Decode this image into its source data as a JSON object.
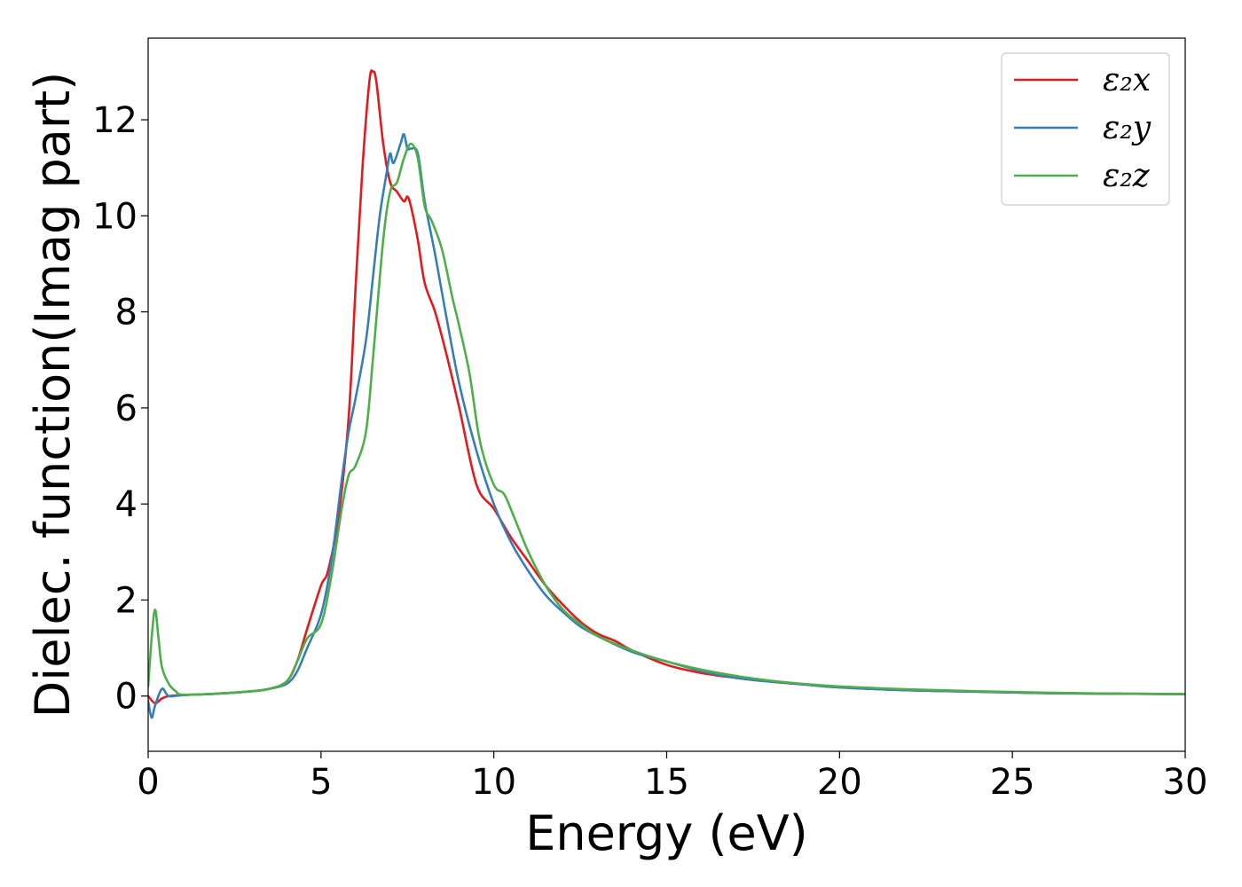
{
  "chart_data": {
    "type": "line",
    "title": "",
    "xlabel": "Energy (eV)",
    "ylabel": "Dielec. function(Imag part)",
    "xlim": [
      0,
      30
    ],
    "ylim": [
      -1.15,
      13.7
    ],
    "xticks": [
      0,
      5,
      10,
      15,
      20,
      25,
      30
    ],
    "yticks": [
      0,
      2,
      4,
      6,
      8,
      10,
      12
    ],
    "grid": false,
    "legend_position": "top-right",
    "series": [
      {
        "name": "ε₂x",
        "color": "#e41a1c",
        "x": [
          0.0,
          0.2,
          0.4,
          0.6,
          1.0,
          2.0,
          3.0,
          3.5,
          4.0,
          4.3,
          4.6,
          5.0,
          5.2,
          5.5,
          5.8,
          6.0,
          6.2,
          6.4,
          6.5,
          6.6,
          6.8,
          7.0,
          7.2,
          7.4,
          7.5,
          7.6,
          7.8,
          8.0,
          8.3,
          8.6,
          9.0,
          9.5,
          10.0,
          10.5,
          11.0,
          11.5,
          12.0,
          12.5,
          13.0,
          13.5,
          14.0,
          15.0,
          16.0,
          17.0,
          18.0,
          19.0,
          20.0,
          22.0,
          24.0,
          26.0,
          28.0,
          30.0
        ],
        "y": [
          0.0,
          -0.15,
          -0.05,
          0.0,
          0.02,
          0.05,
          0.1,
          0.15,
          0.3,
          0.7,
          1.4,
          2.3,
          2.6,
          3.7,
          5.8,
          8.5,
          11.0,
          12.8,
          13.0,
          12.8,
          11.5,
          10.7,
          10.5,
          10.3,
          10.4,
          10.2,
          9.5,
          8.6,
          8.0,
          7.2,
          6.0,
          4.4,
          3.9,
          3.3,
          2.8,
          2.3,
          1.9,
          1.55,
          1.3,
          1.15,
          0.95,
          0.65,
          0.48,
          0.38,
          0.3,
          0.24,
          0.18,
          0.12,
          0.09,
          0.06,
          0.05,
          0.04
        ]
      },
      {
        "name": "ε₂y",
        "color": "#377eb8",
        "x": [
          0.0,
          0.1,
          0.2,
          0.4,
          0.6,
          1.0,
          2.0,
          3.0,
          3.5,
          4.0,
          4.3,
          4.6,
          5.0,
          5.3,
          5.6,
          5.8,
          6.0,
          6.3,
          6.5,
          6.7,
          6.9,
          7.0,
          7.1,
          7.3,
          7.4,
          7.5,
          7.6,
          7.8,
          8.0,
          8.3,
          8.6,
          9.0,
          9.5,
          10.0,
          10.5,
          11.0,
          11.5,
          12.0,
          12.5,
          13.0,
          14.0,
          15.0,
          16.0,
          17.0,
          18.0,
          19.0,
          20.0,
          22.0,
          24.0,
          26.0,
          28.0,
          30.0
        ],
        "y": [
          -0.1,
          -0.45,
          -0.2,
          0.15,
          0.0,
          0.02,
          0.05,
          0.1,
          0.15,
          0.25,
          0.5,
          1.0,
          1.7,
          2.8,
          4.5,
          5.5,
          6.2,
          7.4,
          8.7,
          10.0,
          10.9,
          11.3,
          11.1,
          11.5,
          11.7,
          11.4,
          11.4,
          11.3,
          10.3,
          9.2,
          8.0,
          6.5,
          5.1,
          4.0,
          3.2,
          2.6,
          2.1,
          1.75,
          1.45,
          1.25,
          0.92,
          0.72,
          0.52,
          0.38,
          0.3,
          0.24,
          0.18,
          0.12,
          0.09,
          0.06,
          0.05,
          0.04
        ]
      },
      {
        "name": "ε₂z",
        "color": "#4daf4a",
        "x": [
          0.0,
          0.1,
          0.2,
          0.3,
          0.4,
          0.6,
          0.8,
          1.0,
          2.0,
          3.0,
          3.5,
          4.0,
          4.3,
          4.6,
          5.0,
          5.3,
          5.6,
          5.8,
          6.0,
          6.3,
          6.5,
          6.8,
          7.0,
          7.2,
          7.4,
          7.6,
          7.8,
          8.0,
          8.2,
          8.5,
          8.8,
          9.0,
          9.3,
          9.6,
          10.0,
          10.3,
          10.6,
          11.0,
          11.5,
          12.0,
          12.5,
          13.0,
          14.0,
          15.0,
          16.0,
          17.0,
          18.0,
          19.0,
          20.0,
          22.0,
          24.0,
          26.0,
          28.0,
          30.0
        ],
        "y": [
          0.2,
          1.2,
          1.8,
          1.2,
          0.6,
          0.25,
          0.1,
          0.03,
          0.05,
          0.1,
          0.15,
          0.3,
          0.7,
          1.2,
          1.5,
          2.5,
          3.9,
          4.6,
          4.8,
          5.5,
          7.0,
          9.5,
          10.5,
          10.7,
          11.2,
          11.5,
          11.2,
          10.2,
          9.9,
          9.3,
          8.3,
          7.7,
          6.7,
          5.3,
          4.4,
          4.2,
          3.7,
          3.0,
          2.3,
          1.8,
          1.5,
          1.25,
          0.95,
          0.72,
          0.55,
          0.42,
          0.32,
          0.25,
          0.2,
          0.14,
          0.1,
          0.07,
          0.05,
          0.04
        ]
      }
    ]
  }
}
